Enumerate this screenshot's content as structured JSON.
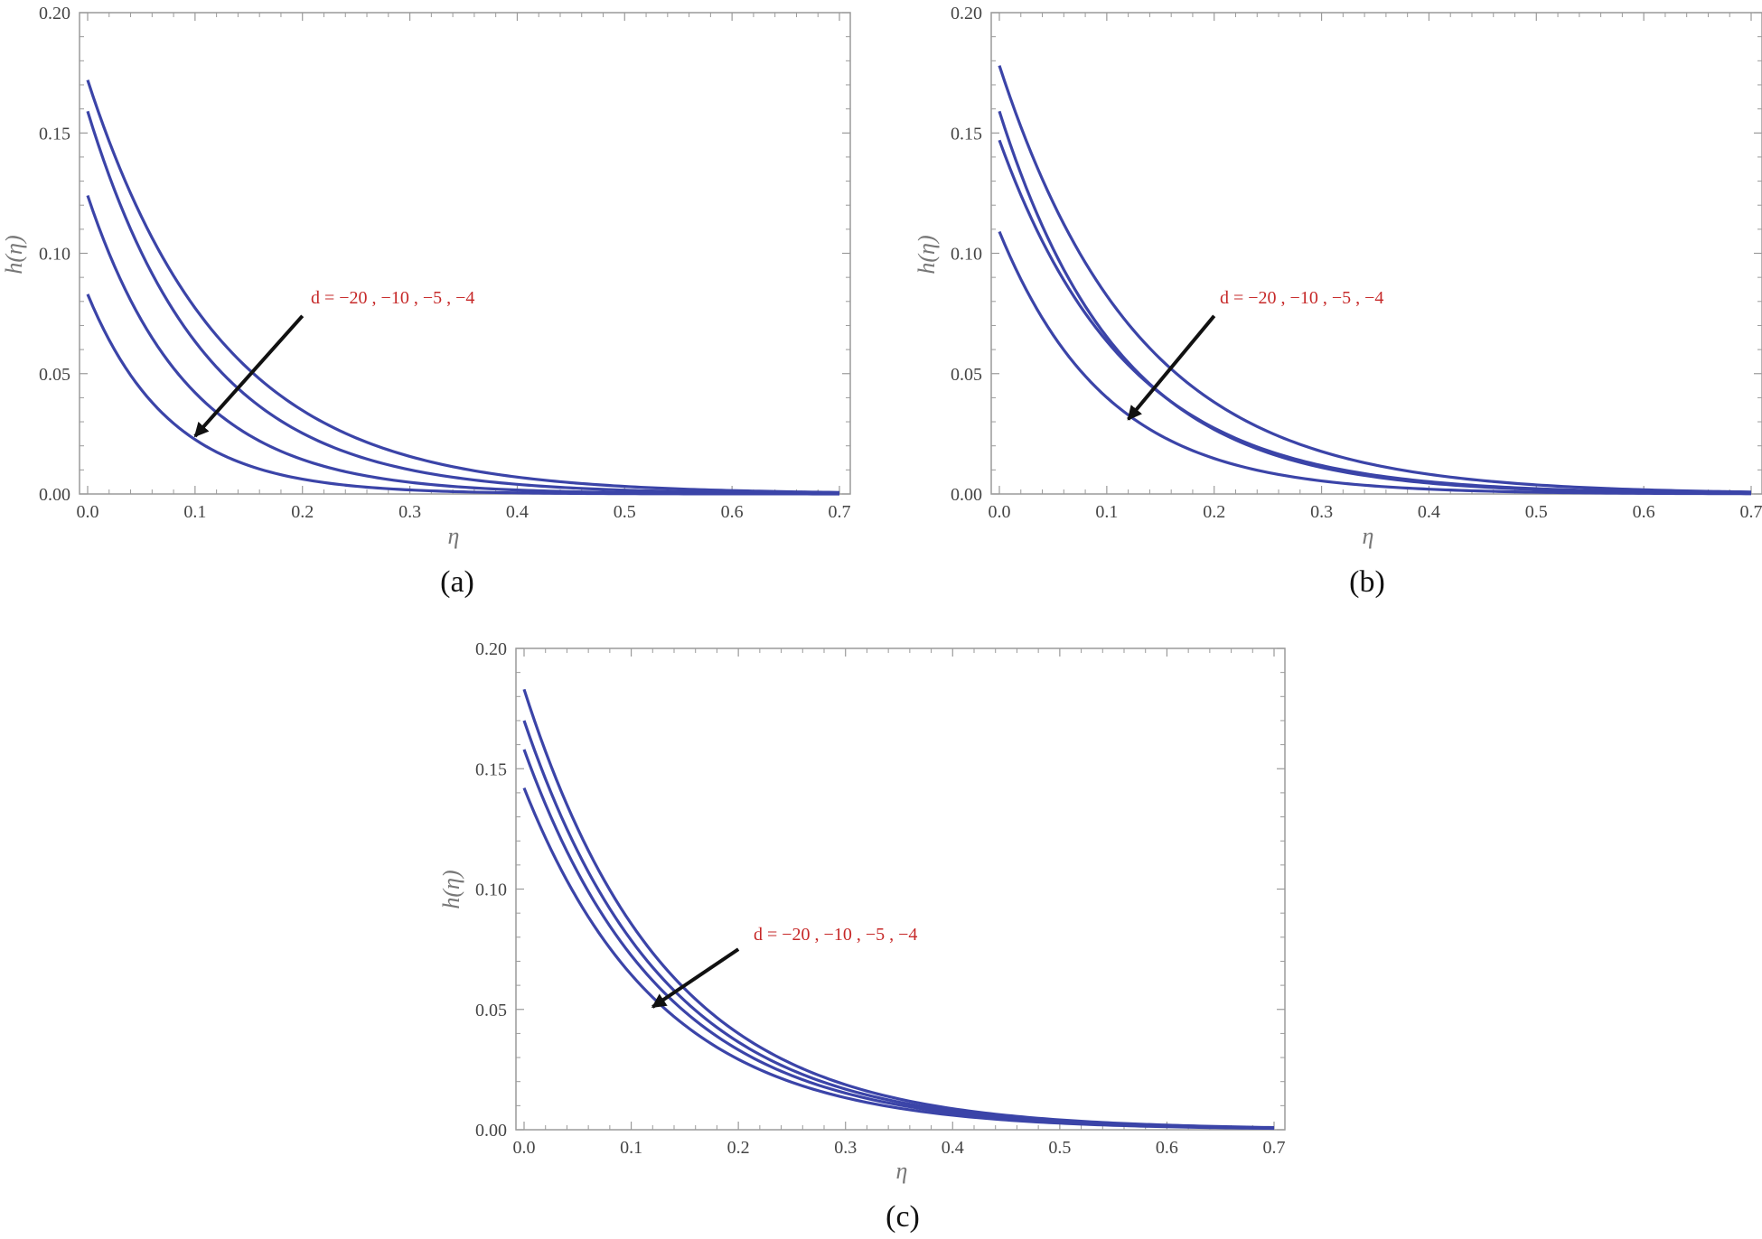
{
  "chart_data": [
    {
      "type": "line",
      "panel_label": "(a)",
      "xlabel": "η",
      "ylabel": "h(η)",
      "xlim": [
        0,
        0.7
      ],
      "ylim": [
        0,
        0.2
      ],
      "xticks": [
        "0.0",
        "0.1",
        "0.2",
        "0.3",
        "0.4",
        "0.5",
        "0.6",
        "0.7"
      ],
      "yticks": [
        "0.00",
        "0.05",
        "0.10",
        "0.15",
        "0.20"
      ],
      "annotation": "d = −20 , −10 , −5 , −4",
      "arrow": {
        "from": [
          0.2,
          0.074
        ],
        "to": [
          0.1,
          0.024
        ]
      },
      "series": [
        {
          "h0": 0.172,
          "k": 8.0,
          "values": [
            0.172,
            0.077,
            0.035,
            0.016,
            0.007,
            0.003,
            0.001,
            0.001
          ]
        },
        {
          "h0": 0.159,
          "k": 9.2,
          "values": [
            0.159,
            0.063,
            0.025,
            0.01,
            0.004,
            0.002,
            0.001,
            0.0
          ]
        },
        {
          "h0": 0.124,
          "k": 10.8,
          "values": [
            0.124,
            0.042,
            0.014,
            0.005,
            0.002,
            0.001,
            0.0,
            0.0
          ]
        },
        {
          "h0": 0.083,
          "k": 13.0,
          "values": [
            0.083,
            0.023,
            0.006,
            0.002,
            0.0,
            0.0,
            0.0,
            0.0
          ]
        }
      ]
    },
    {
      "type": "line",
      "panel_label": "(b)",
      "xlabel": "η",
      "ylabel": "h(η)",
      "xlim": [
        0,
        0.7
      ],
      "ylim": [
        0,
        0.2
      ],
      "xticks": [
        "0.0",
        "0.1",
        "0.2",
        "0.3",
        "0.4",
        "0.5",
        "0.6",
        "0.7"
      ],
      "yticks": [
        "0.00",
        "0.05",
        "0.10",
        "0.15",
        "0.20"
      ],
      "annotation": "d = −20 , −10 , −5 , −4",
      "arrow": {
        "from": [
          0.2,
          0.074
        ],
        "to": [
          0.12,
          0.031
        ]
      },
      "series": [
        {
          "h0": 0.178,
          "k": 7.7,
          "values": [
            0.178,
            0.082,
            0.038,
            0.018,
            0.008,
            0.004,
            0.002,
            0.001
          ]
        },
        {
          "h0": 0.159,
          "k": 8.9,
          "values": [
            0.159,
            0.065,
            0.027,
            0.011,
            0.005,
            0.002,
            0.001,
            0.0
          ]
        },
        {
          "h0": 0.147,
          "k": 8.4,
          "values": [
            0.147,
            0.063,
            0.027,
            0.012,
            0.005,
            0.002,
            0.001,
            0.0
          ]
        },
        {
          "h0": 0.109,
          "k": 10.0,
          "values": [
            0.109,
            0.04,
            0.015,
            0.005,
            0.002,
            0.001,
            0.0,
            0.0
          ]
        }
      ]
    },
    {
      "type": "line",
      "panel_label": "(c)",
      "xlabel": "η",
      "ylabel": "h(η)",
      "xlim": [
        0,
        0.7
      ],
      "ylim": [
        0,
        0.2
      ],
      "xticks": [
        "0.0",
        "0.1",
        "0.2",
        "0.3",
        "0.4",
        "0.5",
        "0.6",
        "0.7"
      ],
      "yticks": [
        "0.00",
        "0.05",
        "0.10",
        "0.15",
        "0.20"
      ],
      "annotation": "d = −20 , −10 , −5 , −4",
      "arrow": {
        "from": [
          0.2,
          0.075
        ],
        "to": [
          0.12,
          0.051
        ]
      },
      "series": [
        {
          "h0": 0.183,
          "k": 7.6,
          "values": [
            0.183,
            0.085,
            0.04,
            0.019,
            0.009,
            0.004,
            0.002,
            0.001
          ]
        },
        {
          "h0": 0.17,
          "k": 7.7,
          "values": [
            0.17,
            0.079,
            0.036,
            0.017,
            0.008,
            0.004,
            0.002,
            0.001
          ]
        },
        {
          "h0": 0.158,
          "k": 7.8,
          "values": [
            0.158,
            0.073,
            0.033,
            0.015,
            0.007,
            0.003,
            0.001,
            0.001
          ]
        },
        {
          "h0": 0.142,
          "k": 7.9,
          "values": [
            0.142,
            0.064,
            0.029,
            0.013,
            0.006,
            0.003,
            0.001,
            0.001
          ]
        }
      ]
    }
  ],
  "colors": {
    "curve": "#3b44a8",
    "frame": "#9a9a9a",
    "annotation": "#c62828",
    "arrow": "#111111"
  }
}
